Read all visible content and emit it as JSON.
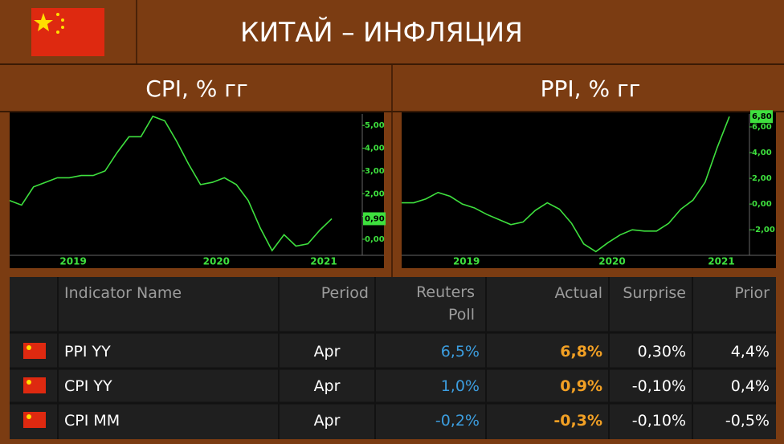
{
  "header": {
    "title": "КИТАЙ – ИНФЛЯЦИЯ"
  },
  "chart_data": [
    {
      "type": "line",
      "title": "CPI, % гг",
      "categories": [
        null,
        null,
        null,
        null,
        null,
        null,
        "2019",
        null,
        null,
        null,
        null,
        null,
        null,
        null,
        null,
        null,
        null,
        null,
        "2020",
        null,
        null,
        null,
        null,
        null,
        null,
        null,
        null,
        "2021"
      ],
      "series": [
        {
          "name": "CPI",
          "color": "#3ee03e",
          "values": [
            1.7,
            1.5,
            2.3,
            2.5,
            2.7,
            2.7,
            2.8,
            2.8,
            3.0,
            3.8,
            4.5,
            4.5,
            5.4,
            5.2,
            4.3,
            3.3,
            2.4,
            2.5,
            2.7,
            2.4,
            1.7,
            0.5,
            -0.5,
            0.2,
            -0.3,
            -0.2,
            0.4,
            0.9
          ]
        }
      ],
      "ylim": [
        -0.6,
        5.5
      ],
      "yticks": [
        {
          "value": 0,
          "label": "0,00"
        },
        {
          "value": 1,
          "label": "1,00"
        },
        {
          "value": 2,
          "label": "2,00"
        },
        {
          "value": 3,
          "label": "3,00"
        },
        {
          "value": 4,
          "label": "4,00"
        },
        {
          "value": 5,
          "label": "5,00"
        }
      ],
      "annotations": [
        {
          "value": 0.9,
          "label": "0,90"
        }
      ]
    },
    {
      "type": "line",
      "title": "PPI, % гг",
      "categories": [
        null,
        null,
        null,
        null,
        null,
        null,
        "2019",
        null,
        null,
        null,
        null,
        null,
        null,
        null,
        null,
        null,
        null,
        null,
        "2020",
        null,
        null,
        null,
        null,
        null,
        null,
        null,
        null,
        "2021"
      ],
      "series": [
        {
          "name": "PPI",
          "color": "#3ee03e",
          "values": [
            0.1,
            0.1,
            0.4,
            0.9,
            0.6,
            0.0,
            -0.3,
            -0.8,
            -1.2,
            -1.6,
            -1.4,
            -0.5,
            0.1,
            -0.4,
            -1.5,
            -3.1,
            -3.7,
            -3.0,
            -2.4,
            -2.0,
            -2.1,
            -2.1,
            -1.5,
            -0.4,
            0.3,
            1.7,
            4.4,
            6.8
          ]
        }
      ],
      "ylim": [
        -3.8,
        7.0
      ],
      "yticks": [
        {
          "value": -2,
          "label": "-2,00"
        },
        {
          "value": 0,
          "label": "0,00"
        },
        {
          "value": 2,
          "label": "2,00"
        },
        {
          "value": 4,
          "label": "4,00"
        },
        {
          "value": 6,
          "label": "6,00"
        }
      ],
      "annotations": [
        {
          "value": 6.8,
          "label": "6,80"
        }
      ]
    }
  ],
  "table": {
    "columns": [
      "Indicator Name",
      "Period",
      "Reuters Poll",
      "Actual",
      "Surprise",
      "Prior"
    ],
    "rows": [
      [
        "PPI YY",
        "Apr",
        "6,5%",
        "6,8%",
        "0,30%",
        "4,4%"
      ],
      [
        "CPI YY",
        "Apr",
        "1,0%",
        "0,9%",
        "-0,10%",
        "0,4%"
      ],
      [
        "CPI MM",
        "Apr",
        "-0,2%",
        "-0,3%",
        "-0,10%",
        "-0,5%"
      ]
    ]
  }
}
